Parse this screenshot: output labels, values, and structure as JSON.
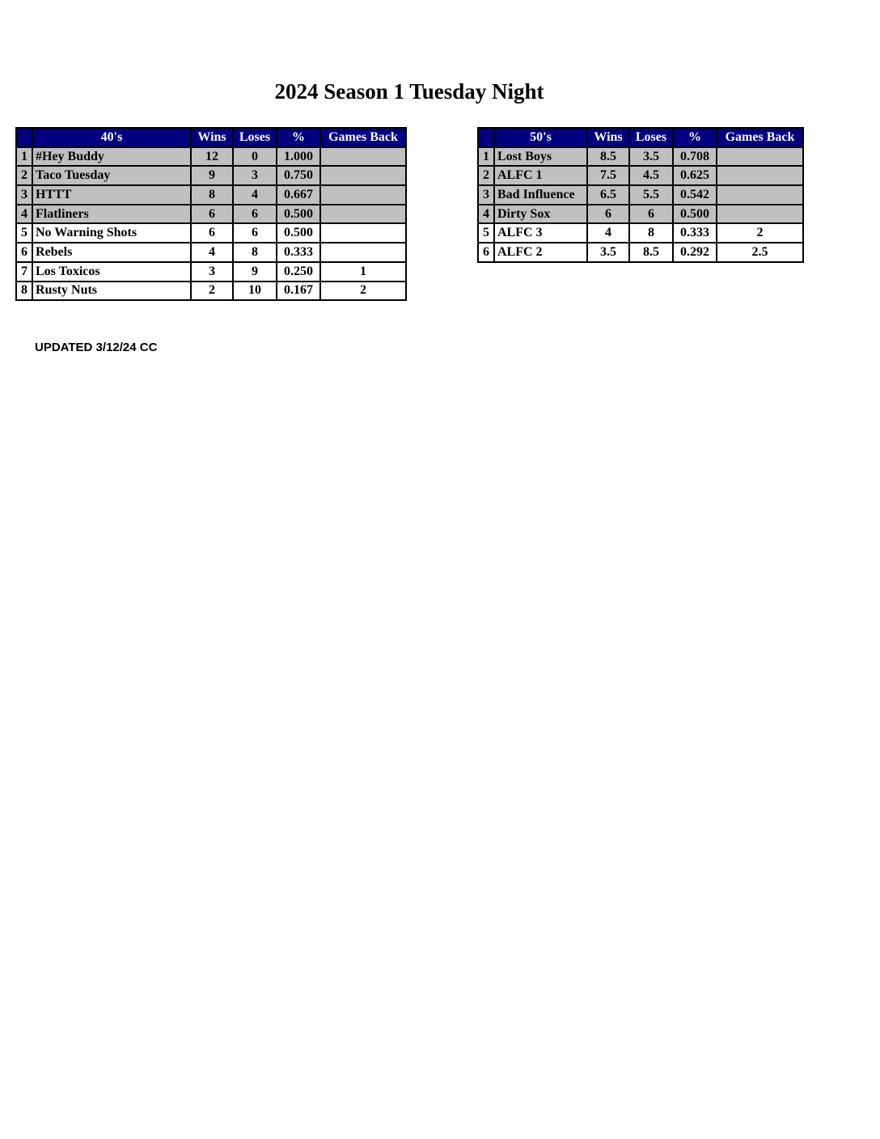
{
  "title": "2024 Season 1 Tuesday Night",
  "columns": [
    "Wins",
    "Loses",
    "%",
    "Games Back"
  ],
  "colors": {
    "header_bg": "#000080",
    "header_text": "#ffffff",
    "playoff_row_bg": "#c0c0c0"
  },
  "divisions": [
    {
      "name": "40's",
      "rows": [
        {
          "rank": "1",
          "team": "#Hey Buddy",
          "wins": "12",
          "loses": "0",
          "pct": "1.000",
          "gb": "",
          "highlight": true
        },
        {
          "rank": "2",
          "team": "Taco Tuesday",
          "wins": "9",
          "loses": "3",
          "pct": "0.750",
          "gb": "",
          "highlight": true
        },
        {
          "rank": "3",
          "team": "HTTT",
          "wins": "8",
          "loses": "4",
          "pct": "0.667",
          "gb": "",
          "highlight": true
        },
        {
          "rank": "4",
          "team": "Flatliners",
          "wins": "6",
          "loses": "6",
          "pct": "0.500",
          "gb": "",
          "highlight": true
        },
        {
          "rank": "5",
          "team": "No Warning Shots",
          "wins": "6",
          "loses": "6",
          "pct": "0.500",
          "gb": "",
          "highlight": false
        },
        {
          "rank": "6",
          "team": "Rebels",
          "wins": "4",
          "loses": "8",
          "pct": "0.333",
          "gb": "",
          "highlight": false
        },
        {
          "rank": "7",
          "team": "Los Toxicos",
          "wins": "3",
          "loses": "9",
          "pct": "0.250",
          "gb": "1",
          "highlight": false
        },
        {
          "rank": "8",
          "team": "Rusty Nuts",
          "wins": "2",
          "loses": "10",
          "pct": "0.167",
          "gb": "2",
          "highlight": false
        }
      ]
    },
    {
      "name": "50's",
      "rows": [
        {
          "rank": "1",
          "team": "Lost Boys",
          "wins": "8.5",
          "loses": "3.5",
          "pct": "0.708",
          "gb": "",
          "highlight": true
        },
        {
          "rank": "2",
          "team": "ALFC 1",
          "wins": "7.5",
          "loses": "4.5",
          "pct": "0.625",
          "gb": "",
          "highlight": true
        },
        {
          "rank": "3",
          "team": "Bad Influence",
          "wins": "6.5",
          "loses": "5.5",
          "pct": "0.542",
          "gb": "",
          "highlight": true
        },
        {
          "rank": "4",
          "team": "Dirty Sox",
          "wins": "6",
          "loses": "6",
          "pct": "0.500",
          "gb": "",
          "highlight": true
        },
        {
          "rank": "5",
          "team": "ALFC 3",
          "wins": "4",
          "loses": "8",
          "pct": "0.333",
          "gb": "2",
          "highlight": false
        },
        {
          "rank": "6",
          "team": "ALFC 2",
          "wins": "3.5",
          "loses": "8.5",
          "pct": "0.292",
          "gb": "2.5",
          "highlight": false
        }
      ]
    }
  ],
  "footer": "UPDATED 3/12/24 CC"
}
